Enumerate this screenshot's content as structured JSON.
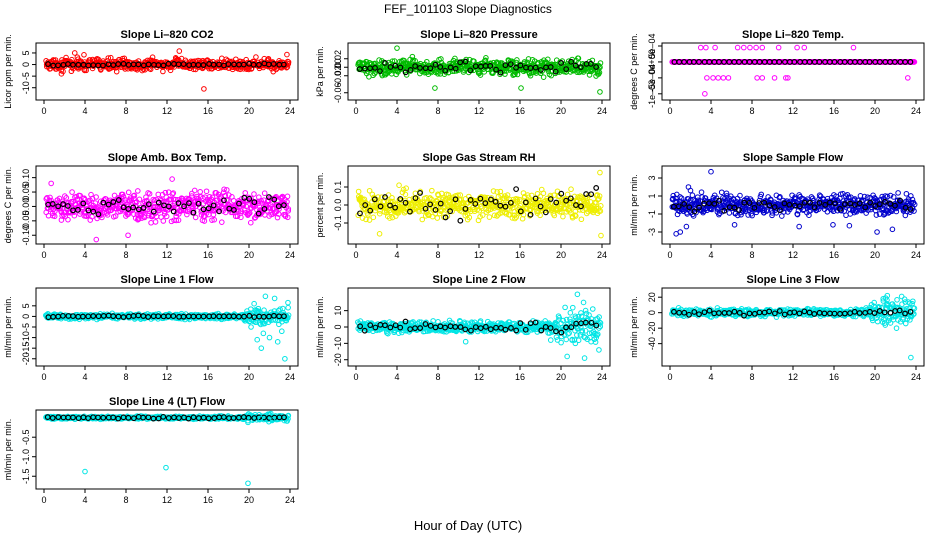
{
  "figure": {
    "title": "FEF_101103  Slope Diagnostics",
    "xlabel": "Hour of Day (UTC)"
  },
  "chart_data": [
    {
      "type": "scatter",
      "title": "Slope Li–820 CO2",
      "ylabel": "Licor ppm per min.",
      "color": "#ff0000",
      "xlim": [
        0,
        24
      ],
      "xticks": [
        0,
        4,
        8,
        12,
        16,
        20,
        24
      ],
      "ylim": [
        -14,
        8
      ],
      "yticks": [
        -10,
        -5,
        0,
        5
      ],
      "yticklabels": [
        "-10",
        "-5",
        "0",
        "5"
      ],
      "points_per_hour": 24,
      "black_spread": 0.4,
      "spread": 2.0,
      "outliers": [
        [
          3.0,
          5.0
        ],
        [
          3.9,
          4.2
        ],
        [
          1.7,
          -4.0
        ],
        [
          13.2,
          5.8
        ],
        [
          11.6,
          -3.0
        ],
        [
          15.6,
          -10.5
        ],
        [
          23.7,
          4.3
        ],
        [
          21.9,
          2.5
        ]
      ]
    },
    {
      "type": "scatter",
      "title": "Slope Li–820 Pressure",
      "ylabel": "kPa per min.",
      "color": "#00bb00",
      "xlim": [
        0,
        24
      ],
      "xticks": [
        0,
        4,
        8,
        12,
        16,
        20,
        24
      ],
      "ylim": [
        -0.07,
        0.05
      ],
      "yticks": [
        -0.06,
        -0.02,
        0.0,
        0.02
      ],
      "yticklabels": [
        "-0.06",
        "-0.02",
        "0.00",
        "0.02"
      ],
      "points_per_hour": 24,
      "black_spread": 0.012,
      "spread": 0.015,
      "outliers": [
        [
          4.0,
          0.045
        ],
        [
          7.7,
          -0.049
        ],
        [
          16.1,
          -0.049
        ],
        [
          23.8,
          -0.058
        ],
        [
          5.5,
          0.025
        ],
        [
          21.7,
          0.021
        ]
      ]
    },
    {
      "type": "scatter",
      "title": "Slope Li–820 Temp.",
      "ylabel": "degrees C per min.",
      "color": "#ff00ff",
      "xlim": [
        0,
        24
      ],
      "xticks": [
        0,
        4,
        8,
        12,
        16,
        20,
        24
      ],
      "ylim": [
        -0.0011,
        0.0005
      ],
      "yticks": [
        -0.001,
        -0.0005,
        0.0,
        0.0005
      ],
      "yticklabels": [
        "-1e–03",
        "-5e–04",
        "0e+00",
        "5e–04"
      ],
      "points_per_hour": 24,
      "black_spread": 0.0,
      "spread": 0.0,
      "outliers": [
        [
          3.0,
          0.00045
        ],
        [
          3.5,
          0.00045
        ],
        [
          4.4,
          0.00045
        ],
        [
          6.6,
          0.00045
        ],
        [
          7.2,
          0.00045
        ],
        [
          7.8,
          0.00045
        ],
        [
          8.4,
          0.00045
        ],
        [
          9.0,
          0.00045
        ],
        [
          10.6,
          0.00045
        ],
        [
          12.4,
          0.00045
        ],
        [
          13.1,
          0.00045
        ],
        [
          17.9,
          0.00045
        ],
        [
          3.6,
          -0.0005
        ],
        [
          4.2,
          -0.0005
        ],
        [
          4.7,
          -0.0005
        ],
        [
          5.2,
          -0.0005
        ],
        [
          5.7,
          -0.0005
        ],
        [
          8.5,
          -0.0005
        ],
        [
          9.0,
          -0.0005
        ],
        [
          10.2,
          -0.0005
        ],
        [
          11.3,
          -0.0005
        ],
        [
          11.5,
          -0.0005
        ],
        [
          23.2,
          -0.0005
        ],
        [
          3.4,
          -0.001
        ]
      ]
    },
    {
      "type": "scatter",
      "title": "Slope Amb. Box Temp.",
      "ylabel": "degrees C per min.",
      "color": "#ff00ff",
      "xlim": [
        0,
        24
      ],
      "xticks": [
        0,
        4,
        8,
        12,
        16,
        20,
        24
      ],
      "ylim": [
        -0.12,
        0.13
      ],
      "yticks": [
        -0.1,
        -0.05,
        0.0,
        0.05,
        0.1
      ],
      "yticklabels": [
        "-0.10",
        "-0.05",
        "0.00",
        "0.05",
        "0.10"
      ],
      "points_per_hour": 24,
      "black_spread": 0.03,
      "spread": 0.04,
      "outliers": [
        [
          0.7,
          0.08
        ],
        [
          5.1,
          -0.115
        ],
        [
          8.2,
          -0.1
        ],
        [
          12.5,
          0.095
        ]
      ]
    },
    {
      "type": "scatter",
      "title": "Slope Gas Stream RH",
      "ylabel": "percent per min.",
      "color": "#eeee00",
      "xlim": [
        0,
        24
      ],
      "xticks": [
        0,
        4,
        8,
        12,
        16,
        20,
        24
      ],
      "ylim": [
        -0.2,
        0.2
      ],
      "yticks": [
        -0.1,
        0.0,
        0.1
      ],
      "yticklabels": [
        "-0.1",
        "0.0",
        "0.1"
      ],
      "points_per_hour": 24,
      "black_spread": 0.07,
      "spread": 0.06,
      "outliers": [
        [
          23.8,
          0.18
        ],
        [
          23.9,
          -0.17
        ],
        [
          4.2,
          0.11
        ],
        [
          2.3,
          -0.16
        ]
      ]
    },
    {
      "type": "scatter",
      "title": "Slope Sample Flow",
      "ylabel": "ml/min per min.",
      "color": "#0000cc",
      "xlim": [
        0,
        24
      ],
      "xticks": [
        0,
        4,
        8,
        12,
        16,
        20,
        24
      ],
      "ylim": [
        -4,
        4
      ],
      "yticks": [
        -3,
        -1,
        1,
        3
      ],
      "yticklabels": [
        "-3",
        "-1",
        "1",
        "3"
      ],
      "points_per_hour": 24,
      "black_spread": 0.5,
      "spread": 0.9,
      "outliers": [
        [
          4.0,
          3.7
        ],
        [
          1.8,
          2.0
        ],
        [
          2.0,
          1.6
        ],
        [
          0.6,
          -3.2
        ],
        [
          1.0,
          -3.0
        ],
        [
          1.6,
          -2.4
        ],
        [
          20.2,
          -3.0
        ],
        [
          21.7,
          -2.7
        ],
        [
          6.3,
          -2.2
        ],
        [
          17.5,
          -2.3
        ],
        [
          15.9,
          -2.2
        ],
        [
          12.6,
          -2.4
        ]
      ]
    },
    {
      "type": "scatter",
      "title": "Slope Line 1 Flow",
      "ylabel": "ml/min per min.",
      "color": "#00e5e5",
      "xlim": [
        0,
        24
      ],
      "xticks": [
        0,
        4,
        8,
        12,
        16,
        20,
        24
      ],
      "ylim": [
        -22,
        12
      ],
      "yticks": [
        -20,
        -15,
        -10,
        -5,
        0,
        5
      ],
      "yticklabels": [
        "-20",
        "-15",
        "-10",
        "-5",
        "0",
        "5"
      ],
      "points_per_hour": 24,
      "black_spread": 0.3,
      "spread": 1.0,
      "outliers": [
        [
          23.5,
          -20
        ],
        [
          21.6,
          9.5
        ],
        [
          22.5,
          8.5
        ],
        [
          23.8,
          6.5
        ],
        [
          20.8,
          -11
        ],
        [
          21.2,
          -15
        ],
        [
          22.8,
          -12
        ],
        [
          22.0,
          -10
        ],
        [
          20.5,
          6
        ],
        [
          21.4,
          -8
        ],
        [
          23.2,
          -7
        ],
        [
          20.2,
          -5
        ]
      ]
    },
    {
      "type": "scatter",
      "title": "Slope Line 2 Flow",
      "ylabel": "ml/min per min.",
      "color": "#00e5e5",
      "xlim": [
        0,
        24
      ],
      "xticks": [
        0,
        4,
        8,
        12,
        16,
        20,
        24
      ],
      "ylim": [
        -22,
        22
      ],
      "yticks": [
        -20,
        -10,
        0,
        10
      ],
      "yticklabels": [
        "-20",
        "-10",
        "0",
        "10"
      ],
      "points_per_hour": 24,
      "black_spread": 2.5,
      "spread": 2.5,
      "outliers": [
        [
          21.6,
          20
        ],
        [
          22.2,
          15
        ],
        [
          20.4,
          12
        ],
        [
          23.1,
          11
        ],
        [
          20.6,
          -18
        ],
        [
          22.3,
          -19
        ],
        [
          23.7,
          -14
        ],
        [
          21.4,
          -10
        ],
        [
          10.7,
          -9
        ],
        [
          19.0,
          -8
        ]
      ]
    },
    {
      "type": "scatter",
      "title": "Slope Line 3 Flow",
      "ylabel": "ml/min per min.",
      "color": "#00e5e5",
      "xlim": [
        0,
        24
      ],
      "xticks": [
        0,
        4,
        8,
        12,
        16,
        20,
        24
      ],
      "ylim": [
        -65,
        28
      ],
      "yticks": [
        -40,
        -20,
        0,
        20
      ],
      "yticklabels": [
        "-40",
        "-20",
        "0",
        "20"
      ],
      "points_per_hour": 24,
      "black_spread": 2.5,
      "spread": 4.0,
      "outliers": [
        [
          21.2,
          22
        ],
        [
          22.6,
          21
        ],
        [
          23.4,
          12
        ],
        [
          20.8,
          18
        ],
        [
          23.5,
          -58
        ],
        [
          22.1,
          -20
        ],
        [
          21.0,
          -16
        ],
        [
          23.0,
          -14
        ]
      ]
    },
    {
      "type": "scatter",
      "title": "Slope Line 4 (LT) Flow",
      "ylabel": "ml/min per min.",
      "color": "#00e5e5",
      "xlim": [
        0,
        24
      ],
      "xticks": [
        0,
        4,
        8,
        12,
        16,
        20,
        24
      ],
      "ylim": [
        -1.75,
        0.12
      ],
      "yticks": [
        -1.5,
        -1.0,
        -0.5
      ],
      "yticklabels": [
        "-1.5",
        "-1.0",
        "-0.5"
      ],
      "points_per_hour": 24,
      "black_spread": 0.02,
      "spread": 0.03,
      "outliers": [
        [
          4.0,
          -1.38
        ],
        [
          11.9,
          -1.28
        ],
        [
          19.9,
          -1.68
        ],
        [
          19.9,
          -0.12
        ],
        [
          21.1,
          -0.02
        ],
        [
          22.3,
          -0.06
        ]
      ]
    }
  ]
}
